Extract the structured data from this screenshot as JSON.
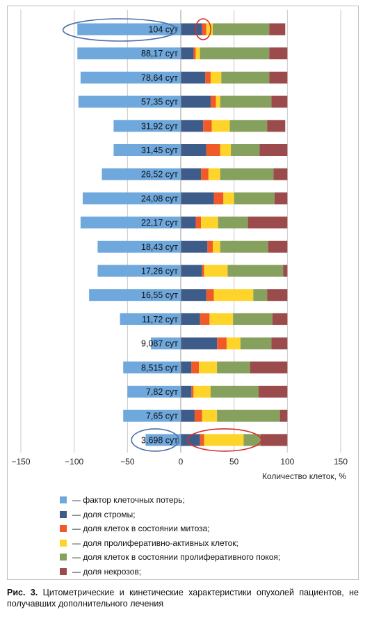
{
  "chart_data": {
    "type": "bar",
    "stacked": true,
    "orientation": "horizontal",
    "xlabel": "Количество клеток, %",
    "xlim": [
      -150,
      150
    ],
    "xticks": [
      -150,
      -100,
      -50,
      0,
      50,
      100,
      150
    ],
    "grid": "vertical",
    "legend_position": "bottom",
    "categories": [
      "104 сут",
      "88,17 сут",
      "78,64 сут",
      "57,35 сут",
      "31,92 сут",
      "31,45 сут",
      "26,52 сут",
      "24,08 сут",
      "22,17 сут",
      "18,43 сут",
      "17,26 сут",
      "16,55 сут",
      "11,72 сут",
      "9,087 сут",
      "8,515 сут",
      "7,82 сут",
      "7,65 сут",
      "3,698 сут"
    ],
    "series": [
      {
        "name": "— фактор клеточных потерь;",
        "color": "#6fa8dc",
        "values": [
          -97,
          -97,
          -94,
          -96,
          -63,
          -63,
          -74,
          -92,
          -94,
          -78,
          -78,
          -86,
          -57,
          -28,
          -54,
          -50,
          -54,
          -33
        ]
      },
      {
        "name": "— доля стромы;",
        "color": "#3e5c8a",
        "values": [
          20,
          12,
          23,
          28,
          21,
          24,
          19,
          31,
          14,
          25,
          20,
          24,
          18,
          34,
          10,
          10,
          13,
          18
        ]
      },
      {
        "name": "— доля клеток в состоянии митоза;",
        "color": "#ef5a28",
        "values": [
          4,
          2,
          5,
          5,
          8,
          13,
          7,
          9,
          5,
          5,
          2,
          7,
          9,
          9,
          7,
          2,
          7,
          4
        ]
      },
      {
        "name": "— доля пролиферативно-активных клеток;",
        "color": "#ffd42a",
        "values": [
          6,
          4,
          10,
          4,
          17,
          10,
          11,
          10,
          16,
          7,
          22,
          37,
          22,
          13,
          17,
          16,
          14,
          37
        ]
      },
      {
        "name": "— доля клеток в состоянии пролиферативного покоя;",
        "color": "#86a05e",
        "values": [
          53,
          65,
          45,
          48,
          35,
          27,
          50,
          38,
          28,
          45,
          52,
          13,
          37,
          29,
          31,
          45,
          59,
          16
        ]
      },
      {
        "name": "— доля некрозов;",
        "color": "#9b4b4b",
        "values": [
          15,
          17,
          17,
          15,
          17,
          26,
          13,
          12,
          37,
          18,
          4,
          19,
          14,
          15,
          35,
          27,
          7,
          25
        ]
      }
    ],
    "annotations": [
      "circle around 104 сут bar start",
      "circle at 104 сут mitosis segment",
      "circle around 3,698 сут label",
      "circle around 3,698 сут proliferative segment"
    ]
  },
  "caption": {
    "bold": "Рис. 3.",
    "text": " Цитометрические и кинетические характеристики опухолей пациентов, не получавших дополнительного лечения"
  }
}
